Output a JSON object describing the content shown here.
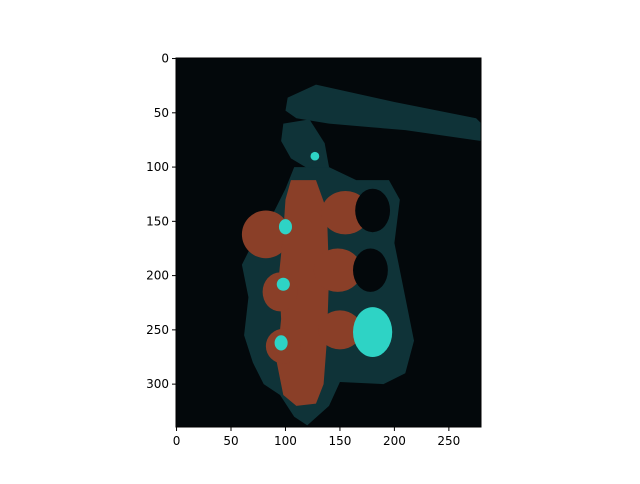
{
  "chart_data": {
    "type": "image",
    "xlim": [
      -0.5,
      279.5
    ],
    "ylim": [
      339.5,
      -0.5
    ],
    "xticks": [
      0,
      50,
      100,
      150,
      200,
      250
    ],
    "yticks": [
      0,
      50,
      100,
      150,
      200,
      250,
      300
    ],
    "colormap": [
      "#03080b",
      "#0f3338",
      "#8a3f28",
      "#2ed3c5"
    ]
  }
}
